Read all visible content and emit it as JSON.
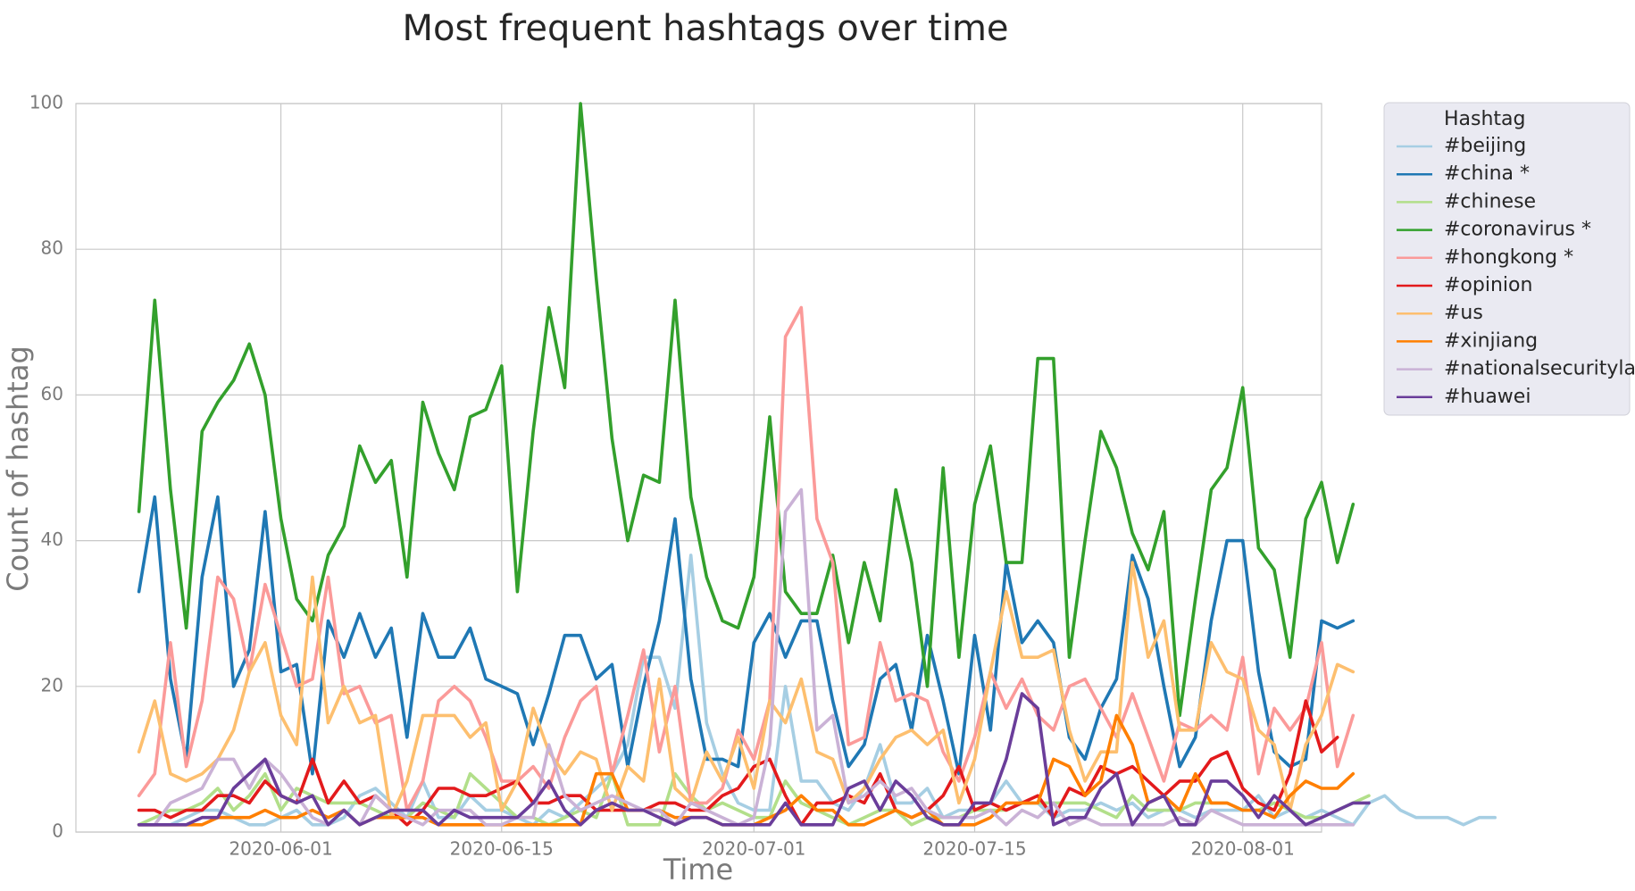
{
  "chart_data": {
    "type": "line",
    "title": "Most frequent hashtags over time",
    "xlabel": "Time",
    "ylabel": "Count of hashtag",
    "ylim": [
      0,
      100
    ],
    "xlim": [
      "2020-05-19",
      "2020-08-06"
    ],
    "grid": true,
    "legend_placement": "outside-top-right",
    "legend_title": "Hashtag",
    "x_ticks": [
      "2020-06-01",
      "2020-06-15",
      "2020-07-01",
      "2020-07-15",
      "2020-08-01"
    ],
    "y_ticks": [
      0,
      20,
      40,
      60,
      80,
      100
    ],
    "start_date": "2020-05-23",
    "series": [
      {
        "name": "#beijing",
        "color": "#a6cee3",
        "values": [
          1,
          1,
          1,
          2,
          3,
          3,
          2,
          1,
          1,
          2,
          3,
          1,
          1,
          2,
          5,
          6,
          4,
          2,
          7,
          2,
          2,
          5,
          3,
          3,
          2,
          1,
          3,
          2,
          4,
          6,
          8,
          12,
          24,
          24,
          17,
          38,
          15,
          8,
          4,
          3,
          3,
          20,
          7,
          7,
          4,
          3,
          6,
          12,
          4,
          4,
          6,
          2,
          3,
          3,
          4,
          7,
          4,
          4,
          2,
          3,
          3,
          4,
          3,
          4,
          2,
          3,
          3,
          2,
          3,
          3,
          3,
          5,
          2,
          3,
          2,
          3,
          2,
          1,
          4,
          5,
          3,
          2,
          2,
          2,
          1,
          2,
          2
        ]
      },
      {
        "name": "#china *",
        "color": "#1f78b4",
        "values": [
          33,
          46,
          21,
          10,
          35,
          46,
          20,
          25,
          44,
          22,
          23,
          8,
          29,
          24,
          30,
          24,
          28,
          13,
          30,
          24,
          24,
          28,
          21,
          20,
          19,
          12,
          19,
          27,
          27,
          21,
          23,
          9,
          20,
          29,
          43,
          21,
          10,
          10,
          9,
          26,
          30,
          24,
          29,
          29,
          18,
          9,
          12,
          21,
          23,
          14,
          27,
          18,
          8,
          27,
          14,
          37,
          26,
          29,
          26,
          13,
          10,
          17,
          21,
          38,
          32,
          20,
          9,
          13,
          29,
          40,
          40,
          22,
          11,
          9,
          10,
          29,
          28,
          29
        ]
      },
      {
        "name": "#chinese",
        "color": "#b2df8a",
        "values": [
          1,
          2,
          3,
          3,
          4,
          6,
          3,
          5,
          8,
          3,
          6,
          5,
          4,
          4,
          4,
          3,
          2,
          2,
          4,
          3,
          2,
          8,
          6,
          4,
          2,
          2,
          1,
          2,
          3,
          2,
          8,
          1,
          1,
          1,
          8,
          5,
          3,
          4,
          3,
          2,
          2,
          7,
          4,
          3,
          2,
          1,
          2,
          3,
          3,
          1,
          2,
          2,
          2,
          3,
          3,
          3,
          4,
          4,
          4,
          4,
          4,
          3,
          2,
          5,
          3,
          3,
          3,
          4,
          4,
          4,
          3,
          3,
          4,
          3,
          2,
          2,
          3,
          4,
          5
        ]
      },
      {
        "name": "#coronavirus *",
        "color": "#33a02c",
        "values": [
          44,
          73,
          47,
          28,
          55,
          59,
          62,
          67,
          60,
          43,
          32,
          29,
          38,
          42,
          53,
          48,
          51,
          35,
          59,
          52,
          47,
          57,
          58,
          64,
          33,
          55,
          72,
          61,
          100,
          76,
          54,
          40,
          49,
          48,
          73,
          46,
          35,
          29,
          28,
          35,
          57,
          33,
          30,
          30,
          38,
          26,
          37,
          29,
          47,
          37,
          20,
          50,
          24,
          45,
          53,
          37,
          37,
          65,
          65,
          24,
          40,
          55,
          50,
          41,
          36,
          44,
          16,
          32,
          47,
          50,
          61,
          39,
          36,
          24,
          43,
          48,
          37,
          45
        ]
      },
      {
        "name": "#hongkong *",
        "color": "#fb9a99",
        "values": [
          5,
          8,
          26,
          9,
          18,
          35,
          32,
          22,
          34,
          27,
          20,
          21,
          35,
          19,
          20,
          15,
          16,
          3,
          7,
          18,
          20,
          18,
          13,
          7,
          7,
          9,
          6,
          13,
          18,
          20,
          8,
          16,
          25,
          11,
          20,
          4,
          4,
          6,
          14,
          10,
          18,
          68,
          72,
          43,
          37,
          12,
          13,
          26,
          18,
          19,
          18,
          11,
          7,
          13,
          22,
          17,
          21,
          16,
          14,
          20,
          21,
          17,
          13,
          19,
          13,
          7,
          15,
          14,
          16,
          14,
          24,
          8,
          17,
          14,
          17,
          26,
          9,
          16
        ]
      },
      {
        "name": "#opinion",
        "color": "#e31a1c",
        "values": [
          3,
          3,
          2,
          3,
          3,
          5,
          5,
          4,
          7,
          5,
          4,
          10,
          4,
          7,
          4,
          5,
          3,
          1,
          3,
          6,
          6,
          5,
          5,
          6,
          7,
          4,
          4,
          5,
          5,
          3,
          3,
          3,
          3,
          4,
          4,
          3,
          3,
          5,
          6,
          9,
          10,
          5,
          1,
          4,
          4,
          5,
          4,
          8,
          3,
          2,
          3,
          5,
          9,
          3,
          4,
          3,
          4,
          5,
          2,
          6,
          5,
          9,
          8,
          9,
          7,
          5,
          7,
          7,
          10,
          11,
          6,
          4,
          3,
          8,
          18,
          11,
          13
        ]
      },
      {
        "name": "#us",
        "color": "#fdbf6f",
        "values": [
          11,
          18,
          8,
          7,
          8,
          10,
          14,
          22,
          26,
          16,
          12,
          35,
          15,
          20,
          15,
          16,
          2,
          7,
          16,
          16,
          16,
          13,
          15,
          3,
          7,
          17,
          11,
          8,
          11,
          10,
          3,
          9,
          7,
          21,
          6,
          4,
          11,
          7,
          13,
          6,
          18,
          15,
          21,
          11,
          10,
          4,
          6,
          10,
          13,
          14,
          12,
          14,
          4,
          10,
          22,
          33,
          24,
          24,
          25,
          14,
          7,
          11,
          11,
          37,
          24,
          29,
          14,
          14,
          26,
          22,
          21,
          14,
          12,
          3,
          12,
          16,
          23,
          22
        ]
      },
      {
        "name": "#xinjiang",
        "color": "#ff7f00",
        "values": [
          1,
          1,
          1,
          1,
          1,
          2,
          2,
          2,
          3,
          2,
          2,
          3,
          2,
          3,
          1,
          2,
          2,
          2,
          2,
          1,
          1,
          1,
          1,
          1,
          1,
          1,
          1,
          1,
          1,
          8,
          8,
          3,
          3,
          3,
          2,
          2,
          2,
          1,
          1,
          1,
          2,
          3,
          5,
          3,
          3,
          1,
          1,
          2,
          3,
          2,
          3,
          1,
          1,
          1,
          2,
          4,
          4,
          4,
          10,
          9,
          5,
          7,
          16,
          12,
          4,
          5,
          3,
          8,
          4,
          4,
          3,
          3,
          2,
          5,
          7,
          6,
          6,
          8
        ]
      },
      {
        "name": "#nationalsecuritylaw",
        "color": "#cab2d6",
        "values": [
          1,
          1,
          4,
          5,
          6,
          10,
          10,
          6,
          10,
          8,
          5,
          2,
          1,
          3,
          1,
          5,
          3,
          2,
          1,
          3,
          3,
          3,
          1,
          1,
          2,
          2,
          12,
          5,
          3,
          4,
          5,
          4,
          3,
          3,
          1,
          4,
          3,
          2,
          1,
          2,
          12,
          44,
          47,
          14,
          16,
          4,
          5,
          7,
          5,
          6,
          3,
          2,
          2,
          2,
          3,
          1,
          3,
          2,
          4,
          1,
          2,
          1,
          1,
          1,
          1,
          1,
          2,
          1,
          3,
          2,
          1,
          1,
          1,
          1,
          1,
          1,
          1,
          1
        ]
      },
      {
        "name": "#huawei",
        "color": "#6a3d9a",
        "values": [
          1,
          1,
          1,
          1,
          2,
          2,
          6,
          8,
          10,
          5,
          4,
          5,
          1,
          3,
          1,
          2,
          3,
          3,
          3,
          1,
          3,
          2,
          2,
          2,
          2,
          4,
          7,
          3,
          1,
          3,
          4,
          3,
          3,
          2,
          1,
          2,
          2,
          1,
          1,
          1,
          1,
          4,
          1,
          1,
          1,
          6,
          7,
          3,
          7,
          5,
          2,
          1,
          1,
          4,
          4,
          10,
          19,
          17,
          1,
          2,
          2,
          6,
          8,
          1,
          4,
          5,
          1,
          1,
          7,
          7,
          5,
          2,
          5,
          3,
          1,
          2,
          3,
          4,
          4
        ]
      }
    ]
  }
}
